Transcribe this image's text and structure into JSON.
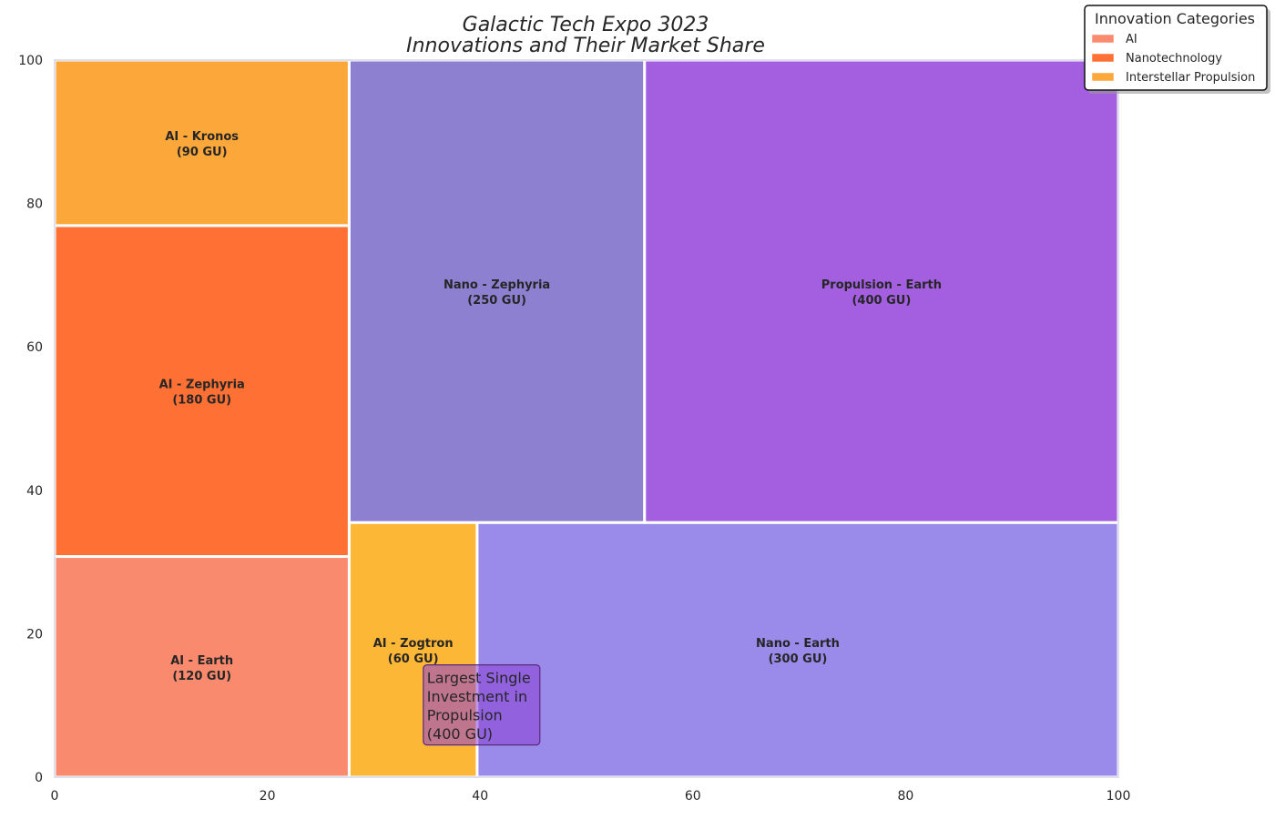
{
  "chart_data": {
    "type": "treemap",
    "title_lines": [
      "Galactic Tech Expo 3023",
      "Innovations and Their Market Share"
    ],
    "xlim": [
      0,
      100
    ],
    "ylim": [
      0,
      100
    ],
    "x_ticks": [
      0,
      20,
      40,
      60,
      80,
      100
    ],
    "y_ticks": [
      0,
      20,
      40,
      60,
      80,
      100
    ],
    "grid": false,
    "legend": {
      "title": "Innovation Categories",
      "placement": "top-right",
      "entries": [
        {
          "label": "AI",
          "color": "#fa8a6e"
        },
        {
          "label": "Nanotechnology",
          "color": "#ff7034"
        },
        {
          "label": "Interstellar Propulsion",
          "color": "#fca73a"
        }
      ]
    },
    "rectangles": [
      {
        "line1": "AI - Earth",
        "line2": "(120 GU)",
        "value": 120,
        "x": 0,
        "y": 0,
        "dx": 27.69,
        "dy": 30.77,
        "color": "#fa8a6e"
      },
      {
        "line1": "AI - Zephyria",
        "line2": "(180 GU)",
        "value": 180,
        "x": 0,
        "y": 30.77,
        "dx": 27.69,
        "dy": 46.15,
        "color": "#ff7034"
      },
      {
        "line1": "AI - Kronos",
        "line2": "(90 GU)",
        "value": 90,
        "x": 0,
        "y": 76.92,
        "dx": 27.69,
        "dy": 23.08,
        "color": "#fca73a"
      },
      {
        "line1": "AI - Zogtron",
        "line2": "(60 GU)",
        "value": 60,
        "x": 27.69,
        "y": 0,
        "dx": 12.03,
        "dy": 35.51,
        "color": "#fdb737"
      },
      {
        "line1": "Nano - Earth",
        "line2": "(300 GU)",
        "value": 300,
        "x": 39.72,
        "y": 0,
        "dx": 60.28,
        "dy": 35.51,
        "color": "#9a8ae9"
      },
      {
        "line1": "Nano - Zephyria",
        "line2": "(250 GU)",
        "value": 250,
        "x": 27.69,
        "y": 35.51,
        "dx": 27.77,
        "dy": 64.49,
        "color": "#8e80d1"
      },
      {
        "line1": "Propulsion - Earth",
        "line2": "(400 GU)",
        "value": 400,
        "x": 55.46,
        "y": 35.51,
        "dx": 44.54,
        "dy": 64.49,
        "color": "#a35fe0"
      }
    ],
    "annotation": {
      "lines": [
        "Largest Single",
        "Investment in",
        "Propulsion",
        "(400 GU)"
      ],
      "x": 35,
      "y": 5,
      "box_color": "#8b3fd6",
      "edge_color": "#5a2a7a"
    }
  }
}
